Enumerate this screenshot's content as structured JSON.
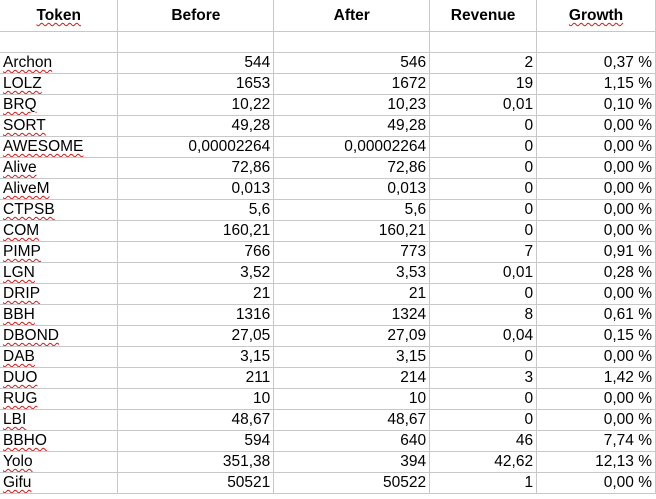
{
  "spreadsheet": {
    "headers": {
      "token": "Token",
      "before": "Before",
      "after": "After",
      "revenue": "Revenue",
      "growth": "Growth"
    },
    "rows": [
      {
        "token": "Archon",
        "before": "544",
        "after": "546",
        "revenue": "2",
        "growth": "0,37 %"
      },
      {
        "token": "LOLZ",
        "before": "1653",
        "after": "1672",
        "revenue": "19",
        "growth": "1,15 %"
      },
      {
        "token": "BRQ",
        "before": "10,22",
        "after": "10,23",
        "revenue": "0,01",
        "growth": "0,10 %"
      },
      {
        "token": "SORT",
        "before": "49,28",
        "after": "49,28",
        "revenue": "0",
        "growth": "0,00 %"
      },
      {
        "token": "AWESOME",
        "before": "0,00002264",
        "after": "0,00002264",
        "revenue": "0",
        "growth": "0,00 %"
      },
      {
        "token": "Alive",
        "before": "72,86",
        "after": "72,86",
        "revenue": "0",
        "growth": "0,00 %"
      },
      {
        "token": "AliveM",
        "before": "0,013",
        "after": "0,013",
        "revenue": "0",
        "growth": "0,00 %"
      },
      {
        "token": "CTPSB",
        "before": "5,6",
        "after": "5,6",
        "revenue": "0",
        "growth": "0,00 %"
      },
      {
        "token": "COM",
        "before": "160,21",
        "after": "160,21",
        "revenue": "0",
        "growth": "0,00 %"
      },
      {
        "token": "PIMP",
        "before": "766",
        "after": "773",
        "revenue": "7",
        "growth": "0,91 %"
      },
      {
        "token": "LGN",
        "before": "3,52",
        "after": "3,53",
        "revenue": "0,01",
        "growth": "0,28 %"
      },
      {
        "token": "DRIP",
        "before": "21",
        "after": "21",
        "revenue": "0",
        "growth": "0,00 %"
      },
      {
        "token": "BBH",
        "before": "1316",
        "after": "1324",
        "revenue": "8",
        "growth": "0,61 %"
      },
      {
        "token": "DBOND",
        "before": "27,05",
        "after": "27,09",
        "revenue": "0,04",
        "growth": "0,15 %"
      },
      {
        "token": "DAB",
        "before": "3,15",
        "after": "3,15",
        "revenue": "0",
        "growth": "0,00 %"
      },
      {
        "token": "DUO",
        "before": "211",
        "after": "214",
        "revenue": "3",
        "growth": "1,42 %"
      },
      {
        "token": "RUG",
        "before": "10",
        "after": "10",
        "revenue": "0",
        "growth": "0,00 %"
      },
      {
        "token": "LBI",
        "before": "48,67",
        "after": "48,67",
        "revenue": "0",
        "growth": "0,00 %"
      },
      {
        "token": "BBHO",
        "before": "594",
        "after": "640",
        "revenue": "46",
        "growth": "7,74 %"
      },
      {
        "token": "Yolo",
        "before": "351,38",
        "after": "394",
        "revenue": "42,62",
        "growth": "12,13 %"
      },
      {
        "token": "Gifu",
        "before": "50521",
        "after": "50522",
        "revenue": "1",
        "growth": "0,00 %"
      }
    ]
  },
  "colors": {
    "gridline": "#c8c8c8",
    "spellcheck_underline": "#d01a1a"
  }
}
